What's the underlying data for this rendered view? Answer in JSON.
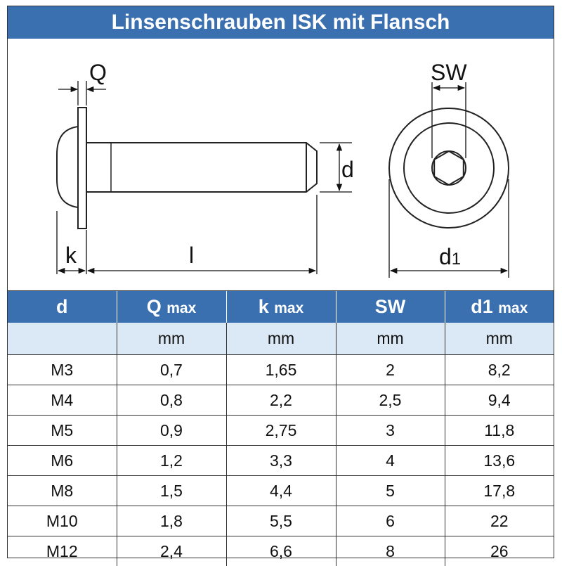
{
  "title": "Linsenschrauben ISK mit Flansch",
  "diagram": {
    "labels": {
      "Q": "Q",
      "SW": "SW",
      "d": "d",
      "k": "k",
      "l": "l",
      "d1": "d",
      "d1_sub": "1"
    }
  },
  "table": {
    "headers": [
      {
        "main": "d",
        "sub": ""
      },
      {
        "main": "Q",
        "sub": "max"
      },
      {
        "main": "k",
        "sub": "max"
      },
      {
        "main": "SW",
        "sub": ""
      },
      {
        "main": "d1",
        "sub": "max"
      }
    ],
    "units": [
      "",
      "mm",
      "mm",
      "mm",
      "mm"
    ],
    "rows": [
      [
        "M3",
        "0,7",
        "1,65",
        "2",
        "8,2"
      ],
      [
        "M4",
        "0,8",
        "2,2",
        "2,5",
        "9,4"
      ],
      [
        "M5",
        "0,9",
        "2,75",
        "3",
        "11,8"
      ],
      [
        "M6",
        "1,2",
        "3,3",
        "4",
        "13,6"
      ],
      [
        "M8",
        "1,5",
        "4,4",
        "5",
        "17,8"
      ],
      [
        "M10",
        "1,8",
        "5,5",
        "6",
        "22"
      ],
      [
        "M12",
        "2,4",
        "6,6",
        "8",
        "26"
      ]
    ]
  }
}
